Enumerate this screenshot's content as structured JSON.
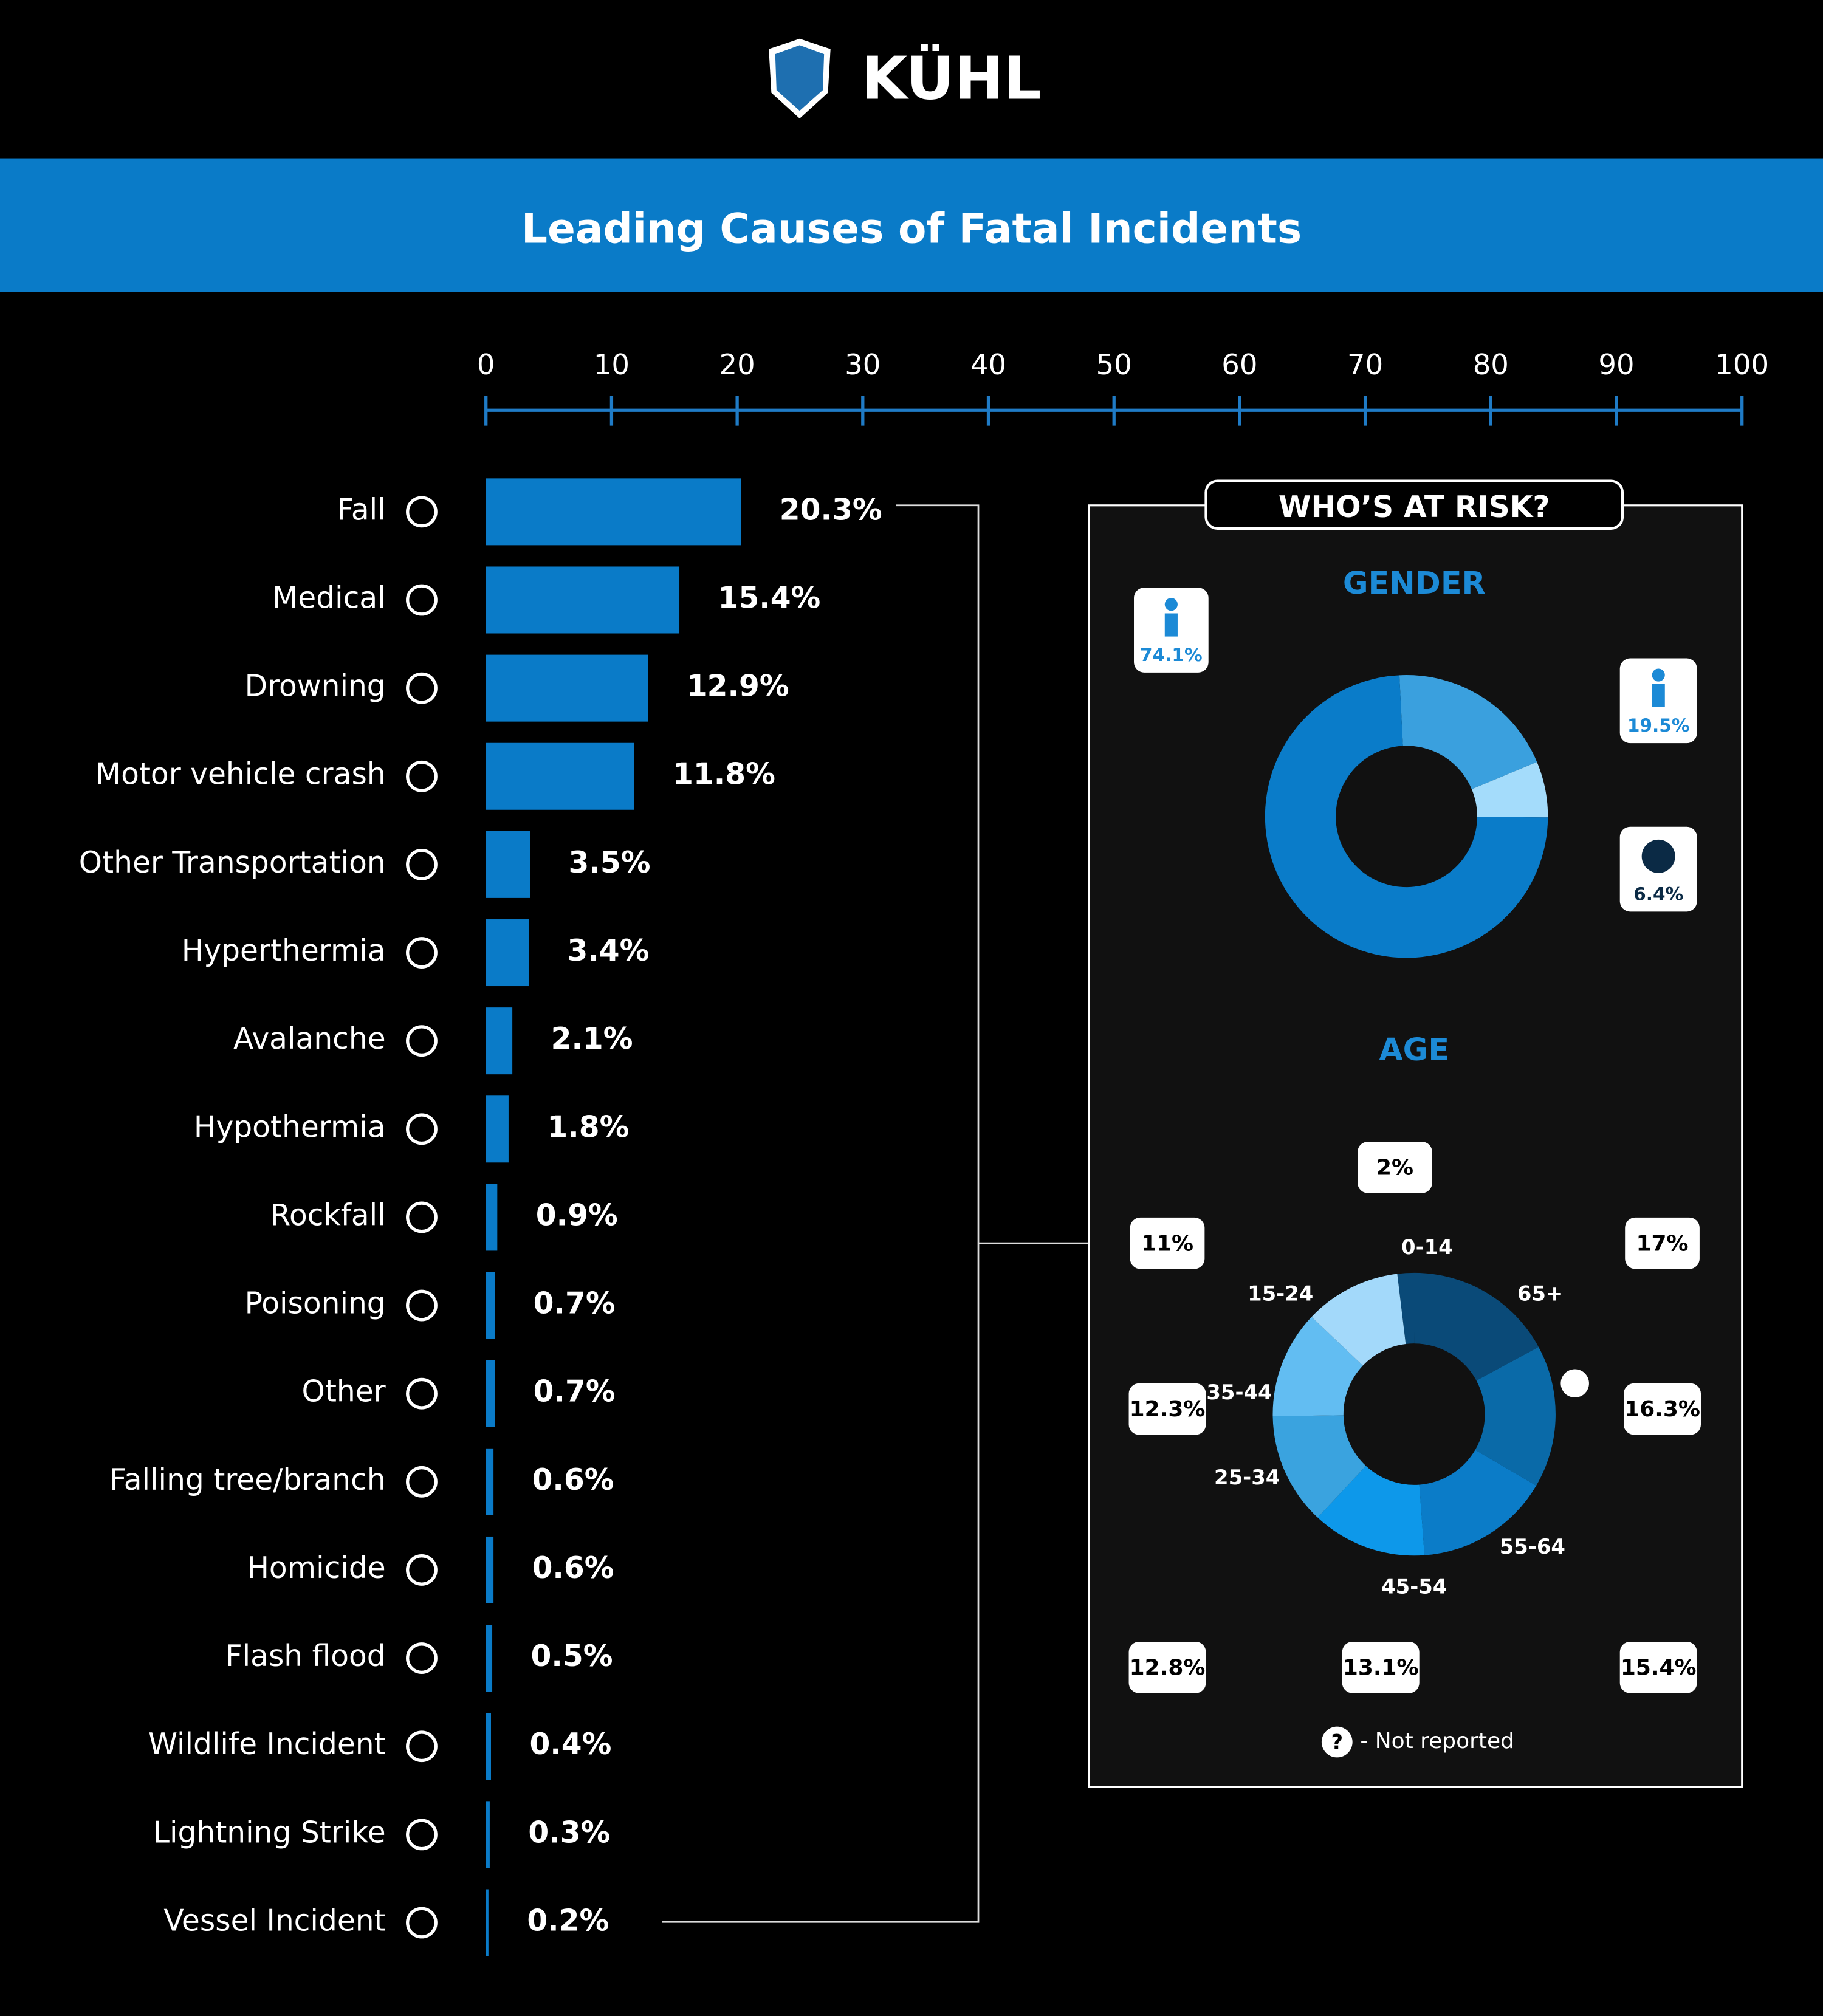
{
  "brand": "KÜHL",
  "title": "Leading Causes of Fatal Incidents",
  "chart_data": {
    "type": "hbar",
    "categories": [
      "Fall",
      "Medical",
      "Drowning",
      "Motor vehicle crash",
      "Other Transportation",
      "Hyperthermia",
      "Avalanche",
      "Hypothermia",
      "Rockfall",
      "Poisoning",
      "Other",
      "Falling tree/branch",
      "Homicide",
      "Flash flood",
      "Wildlife Incident",
      "Lightning Strike",
      "Vessel Incident"
    ],
    "values": [
      20.3,
      15.4,
      12.9,
      11.8,
      3.5,
      3.4,
      2.1,
      1.8,
      0.9,
      0.7,
      0.7,
      0.6,
      0.6,
      0.5,
      0.4,
      0.3,
      0.2
    ],
    "value_labels": [
      "20.3%",
      "15.4%",
      "12.9%",
      "11.8%",
      "3.5%",
      "3.4%",
      "2.1%",
      "1.8%",
      "0.9%",
      "0.7%",
      "0.7%",
      "0.6%",
      "0.6%",
      "0.5%",
      "0.4%",
      "0.3%",
      "0.2%"
    ],
    "color": "#0a7bc8",
    "xlim": [
      0,
      100
    ],
    "xticks": [
      0,
      10,
      20,
      30,
      40,
      50,
      60,
      70,
      80,
      90,
      100
    ]
  },
  "risk_panel": {
    "title": "WHO’S AT RISK?",
    "gender": {
      "type": "donut",
      "title": "GENDER",
      "categories": [
        "Female",
        "Not reported",
        "Male"
      ],
      "values": [
        19.5,
        6.4,
        74.1
      ],
      "value_labels": [
        "19.5%",
        "6.4%",
        "74.1%"
      ],
      "colors": [
        "#3aa0de",
        "#a4dcfb",
        "#0a7cc9"
      ]
    },
    "age": {
      "type": "donut",
      "title": "AGE",
      "categories": [
        "0-14",
        "65+",
        null,
        "55-64",
        "45-54",
        "25-34",
        "35-44",
        "15-24"
      ],
      "values": [
        2,
        17,
        16.3,
        15.4,
        13.1,
        12.8,
        12.3,
        11
      ],
      "value_labels": [
        "2%",
        "17%",
        "16.3%",
        "15.4%",
        "13.1%",
        "12.8%",
        "12.3%",
        "11%"
      ],
      "colors": [
        "#0a4a78",
        "#0a4a78",
        "#0a6aa8",
        "#0b7cc8",
        "#0d98ea",
        "#3aa3df",
        "#62bdf2",
        "#a3d9fa"
      ]
    },
    "legend": {
      "symbol": "?",
      "label": "- Not reported"
    }
  }
}
